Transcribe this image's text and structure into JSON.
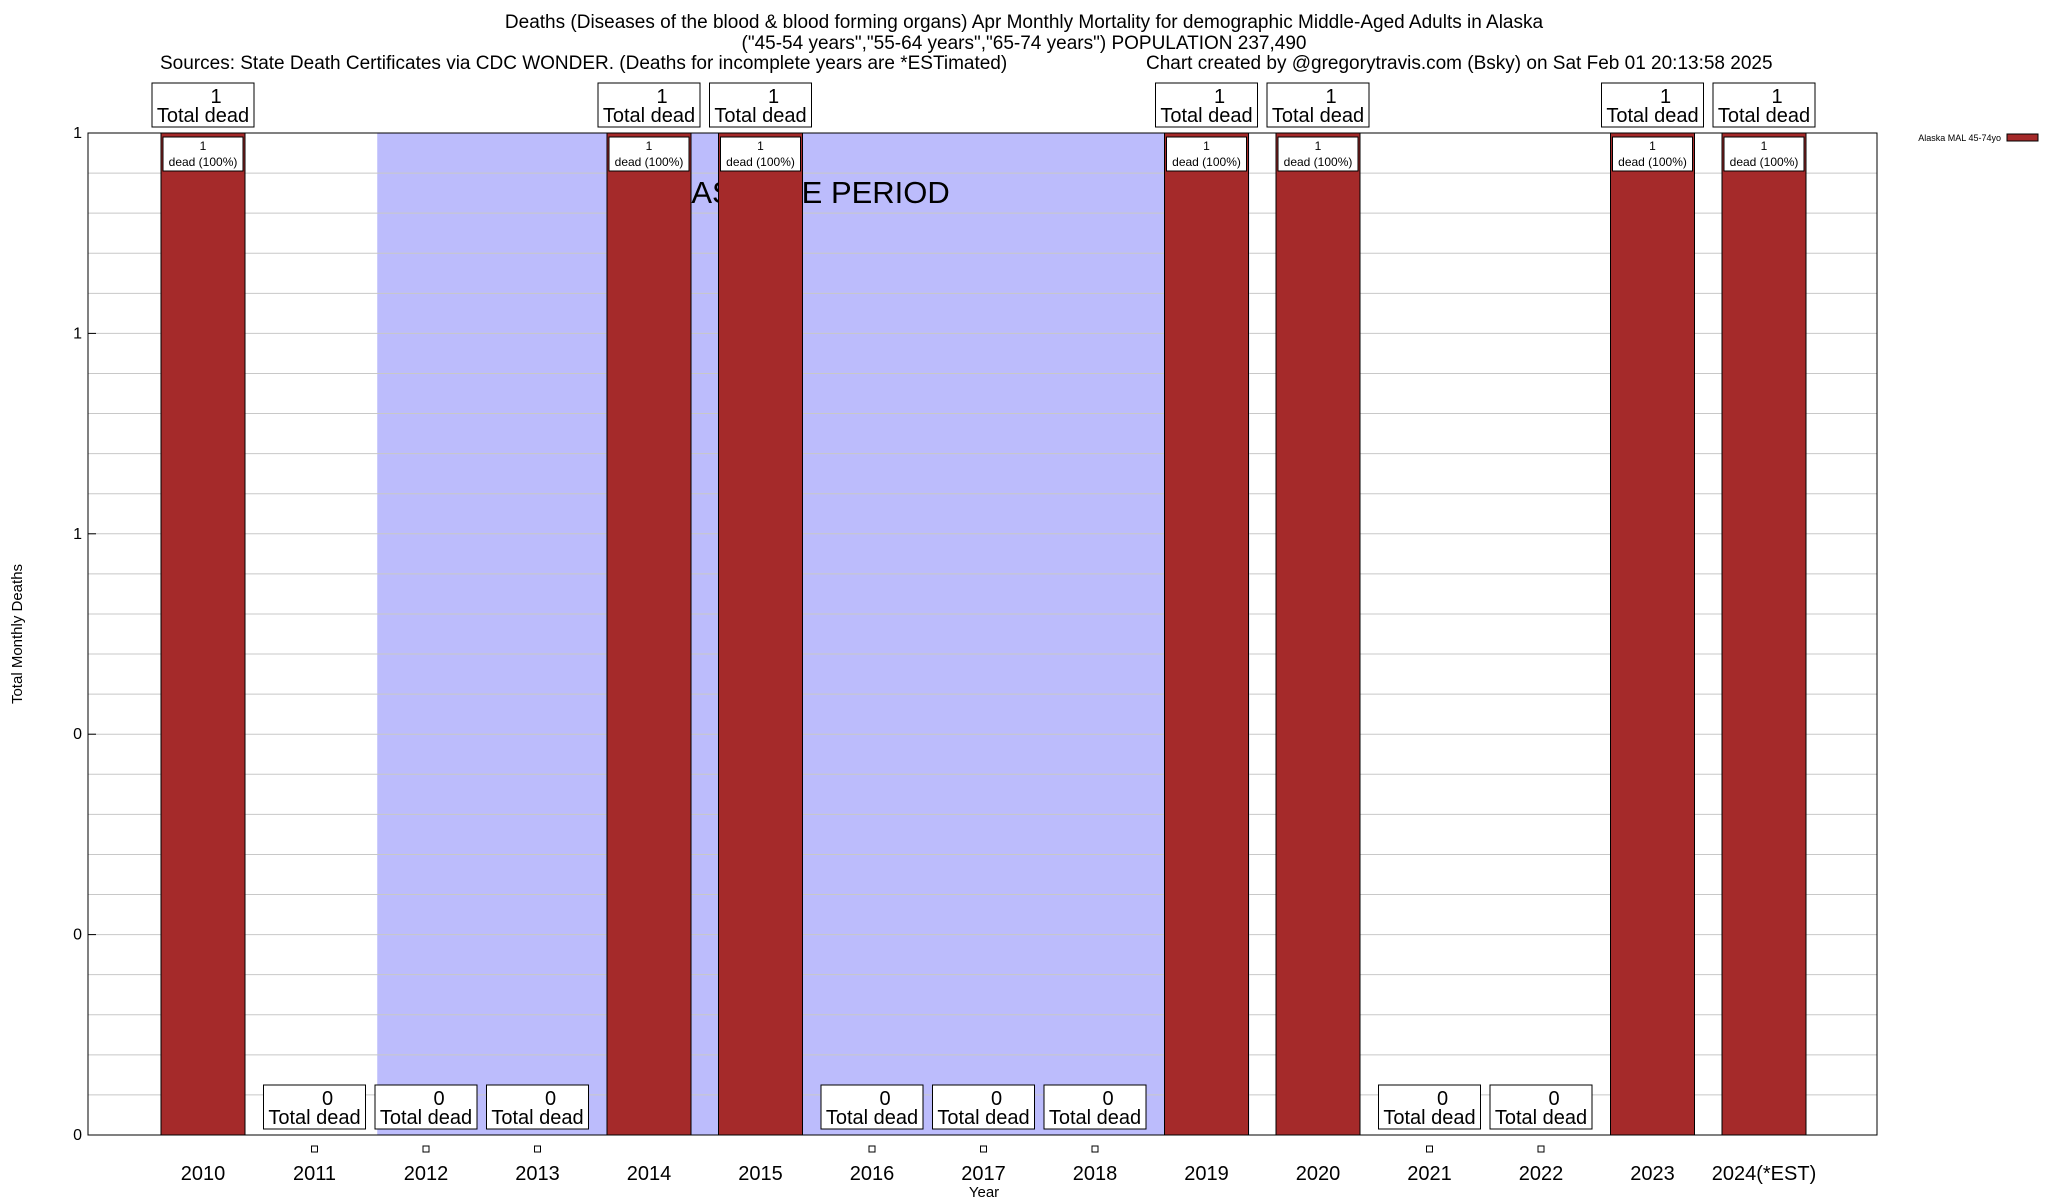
{
  "header": {
    "title_line1": "Deaths (Diseases of the blood & blood forming organs) Apr Monthly Mortality for demographic Middle-Aged Adults in Alaska",
    "title_line2": "(\"45-54 years\",\"55-64 years\",\"65-74 years\") POPULATION 237,490",
    "sources": "Sources: State Death Certificates via CDC WONDER. (Deaths for incomplete years are *ESTimated)",
    "credit": "Chart created by @gregorytravis.com (Bsky) on Sat Feb 01 20:13:58 2025"
  },
  "chart_data": {
    "type": "bar",
    "xlabel": "Year",
    "ylabel": "Total Monthly Deaths",
    "categories": [
      "2010",
      "2011",
      "2012",
      "2013",
      "2014",
      "2015",
      "2016",
      "2017",
      "2018",
      "2019",
      "2020",
      "2021",
      "2022",
      "2023",
      "2024(*EST)"
    ],
    "series": [
      {
        "name": "Alaska MAL 45-74yo",
        "color": "#a52a2a",
        "values": [
          1,
          0,
          0,
          0,
          1,
          1,
          0,
          0,
          0,
          1,
          1,
          0,
          0,
          1,
          1
        ]
      }
    ],
    "total_label_suffix": "Total dead",
    "bar_label_suffix": "dead (100%)",
    "ylim": [
      0,
      1
    ],
    "y_ticks": [
      0,
      0.2,
      0.4,
      0.6,
      0.8,
      1.0
    ],
    "y_tick_labels": [
      "0",
      "0",
      "0",
      "1",
      "1",
      "1"
    ],
    "baseline_period": {
      "label": "BASELINE PERIOD",
      "start": "2012",
      "end": "2019",
      "color": "#bcbcfc"
    },
    "legend": {
      "position": "top-right"
    },
    "grid": true
  }
}
